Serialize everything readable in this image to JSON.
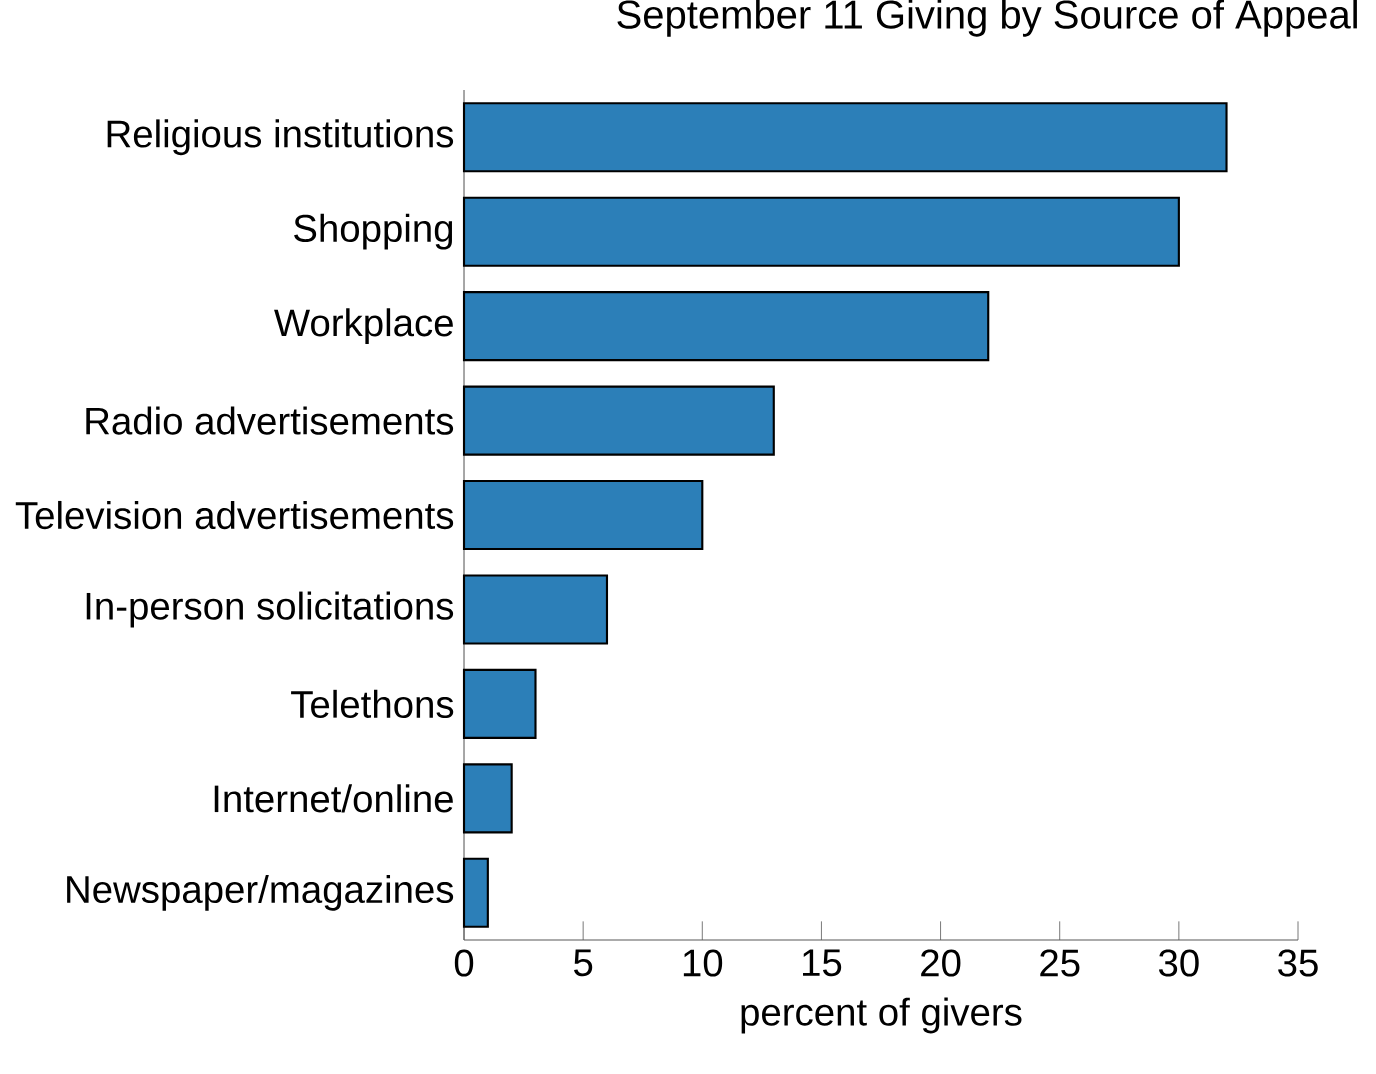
{
  "chart_data": {
    "type": "bar",
    "orientation": "horizontal",
    "title": "September 11 Giving by Source of Appeal",
    "xlabel": "percent of givers",
    "categories": [
      "Religious institutions",
      "Shopping",
      "Workplace",
      "Radio advertisements",
      "Television advertisements",
      "In-person solicitations",
      "Telethons",
      "Internet/online",
      "Newspaper/magazines"
    ],
    "values": [
      32,
      30,
      22,
      13,
      10,
      6,
      3,
      2,
      1
    ],
    "color": "#2c7fb8",
    "xlim": [
      0,
      35
    ],
    "xticks": [
      0,
      5,
      10,
      15,
      20,
      25,
      30,
      35
    ],
    "grid": false
  }
}
